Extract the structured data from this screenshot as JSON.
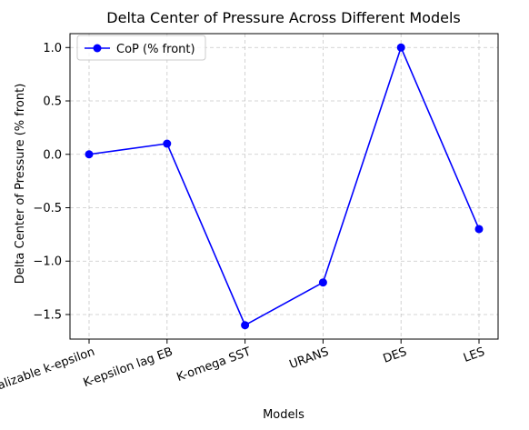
{
  "chart_data": {
    "type": "line",
    "title": "Delta Center of Pressure Across Different Models",
    "xlabel": "Models",
    "ylabel": "Delta Center of Pressure (% front)",
    "categories": [
      "Realizable k-epsilon",
      "K-epsilon lag EB",
      "K-omega SST",
      "URANS",
      "DES",
      "LES"
    ],
    "series": [
      {
        "name": "CoP (% front)",
        "values": [
          0.0,
          0.1,
          -1.6,
          -1.2,
          1.0,
          -0.7
        ],
        "color": "#0000ff",
        "marker": "circle"
      }
    ],
    "ylim": [
      -1.73,
      1.13
    ],
    "yticks": [
      1.0,
      0.5,
      0.0,
      -0.5,
      -1.0,
      -1.5
    ],
    "ytick_labels": [
      "1.0",
      "0.5",
      "0.0",
      "−0.5",
      "−1.0",
      "−1.5"
    ],
    "grid": true,
    "legend": "top-left"
  }
}
